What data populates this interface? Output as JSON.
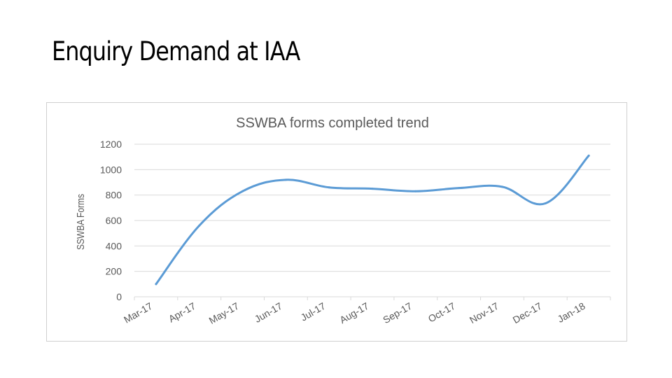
{
  "page": {
    "title": "Enquiry Demand at IAA"
  },
  "chart_data": {
    "type": "line",
    "title": "SSWBA forms completed trend",
    "xlabel": "",
    "ylabel": "SSWBA Forms",
    "categories": [
      "Mar-17",
      "Apr-17",
      "May-17",
      "Jun-17",
      "Jul-17",
      "Aug-17",
      "Sep-17",
      "Oct-17",
      "Nov-17",
      "Dec-17",
      "Jan-18"
    ],
    "series": [
      {
        "values": [
          100,
          560,
          830,
          920,
          860,
          850,
          830,
          855,
          865,
          735,
          1110
        ]
      }
    ],
    "ylim": [
      0,
      1200
    ],
    "yticks": [
      0,
      200,
      400,
      600,
      800,
      1000,
      1200
    ],
    "grid": true,
    "legend": "none",
    "colors": {
      "line": "#5b9bd5",
      "grid": "#d9d9d9",
      "axis_text": "#595959"
    }
  }
}
